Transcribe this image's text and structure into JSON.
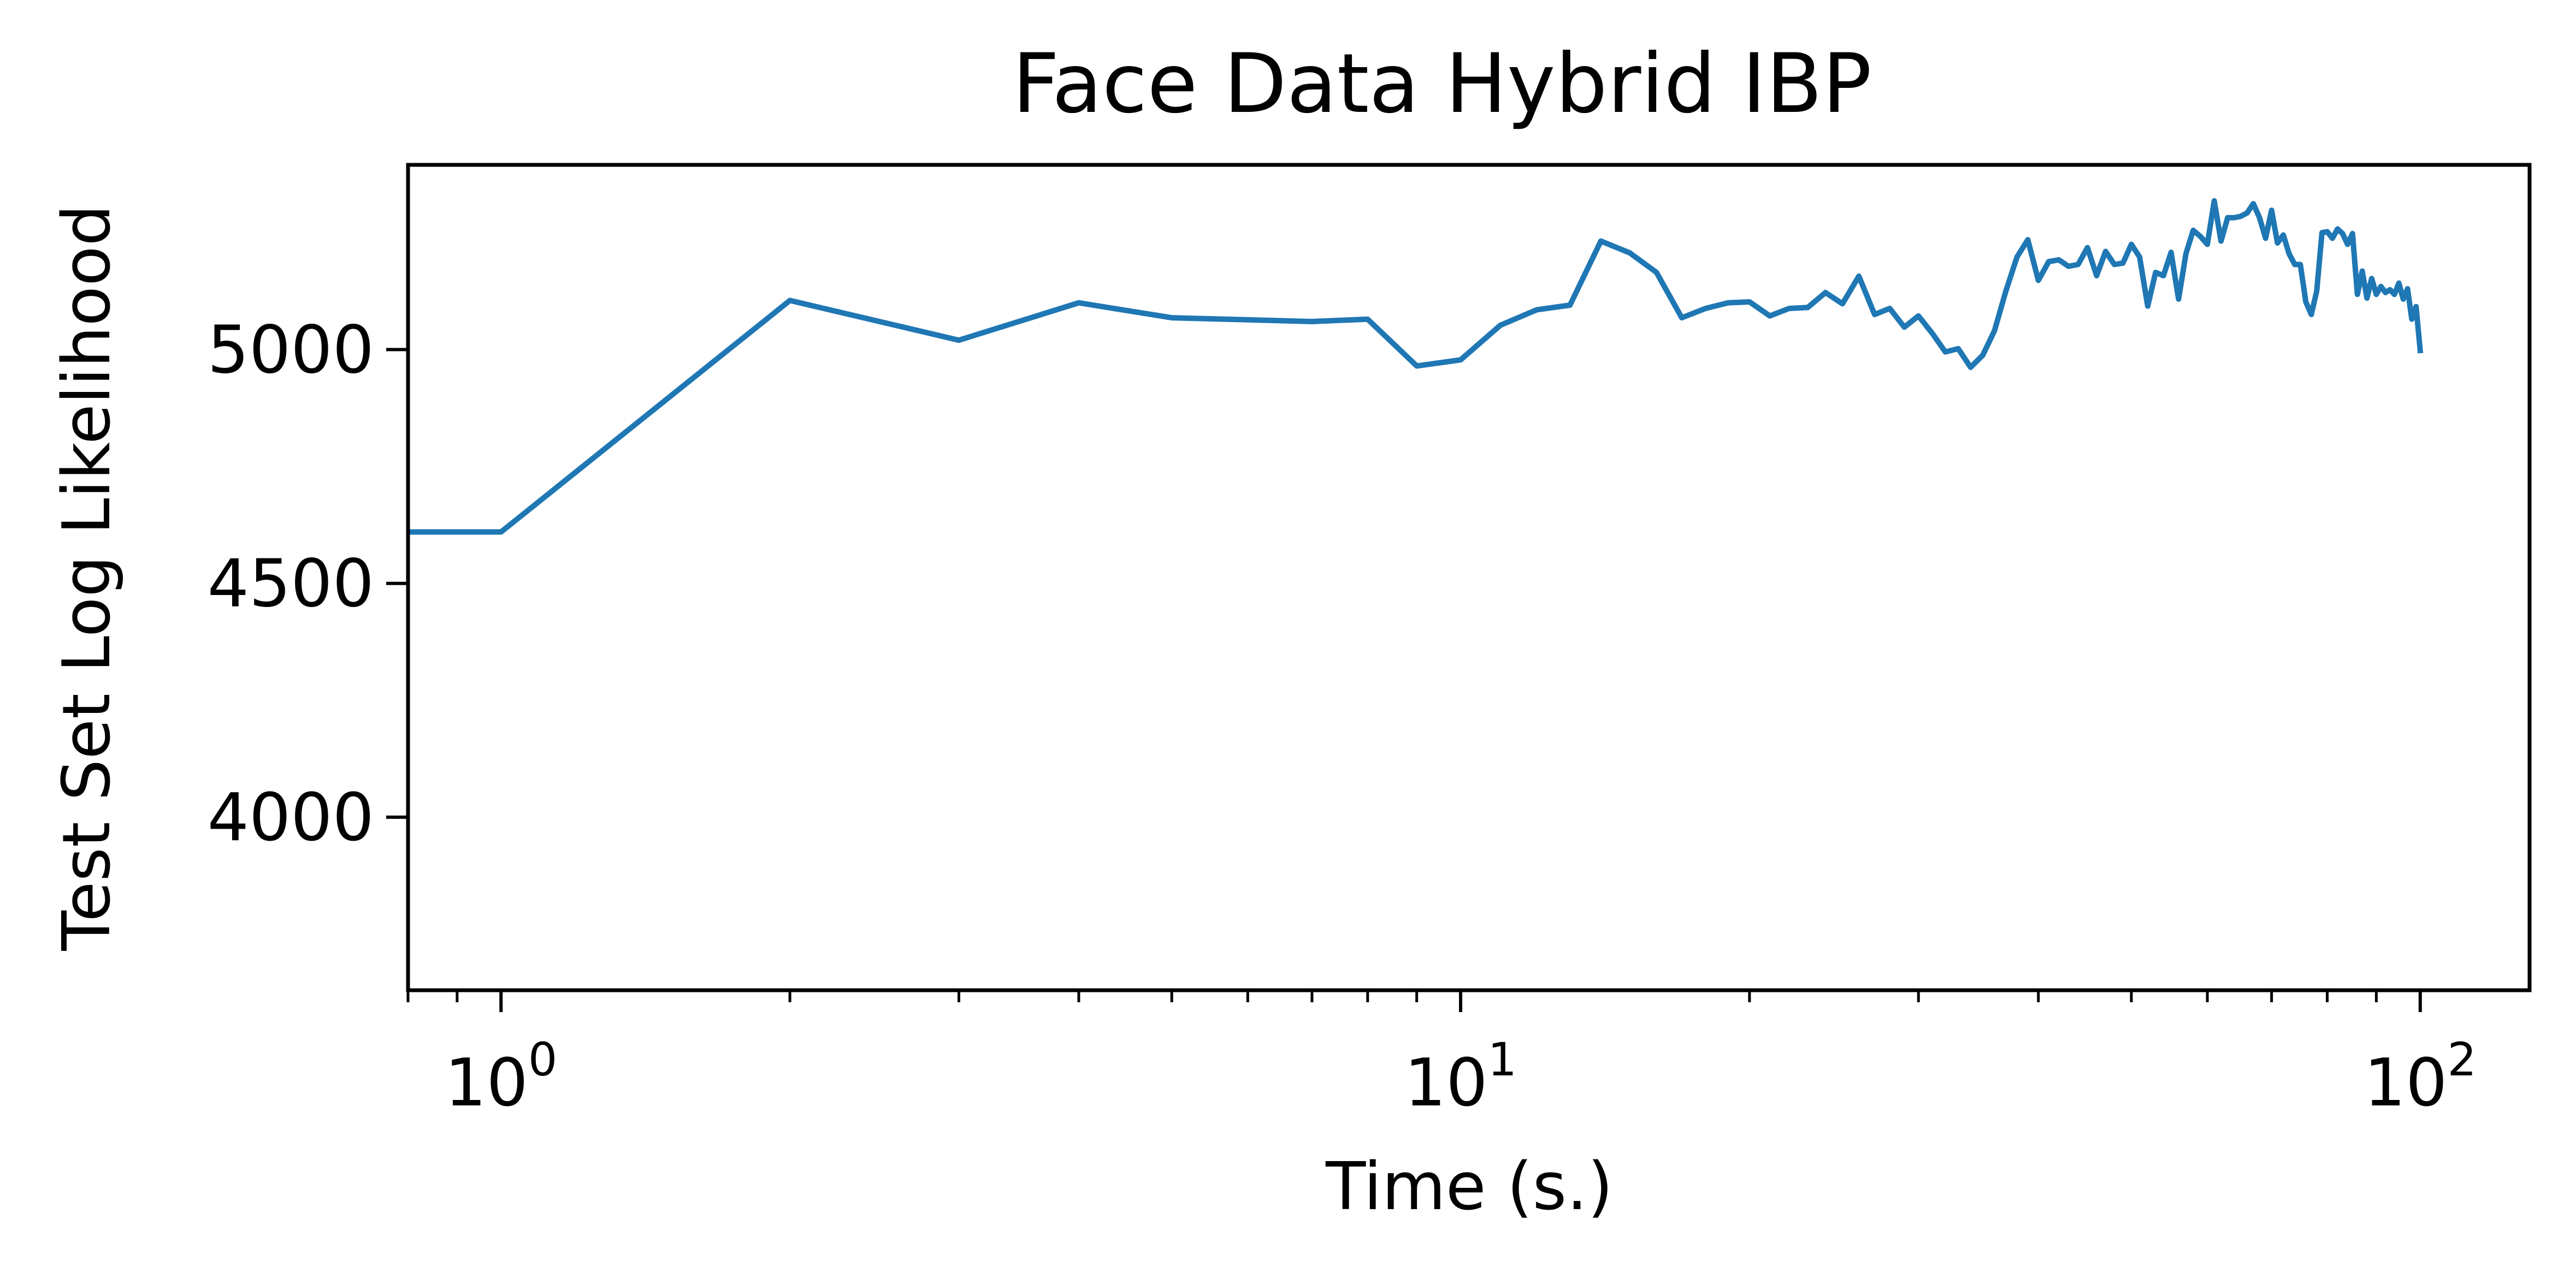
{
  "chart_data": {
    "type": "line",
    "title": "Face Data Hybrid IBP",
    "xlabel": "Time (s.)",
    "ylabel": "Test Set Log Likelihood",
    "x_scale": "log",
    "xlim": [
      0.8,
      130
    ],
    "ylim": [
      3630,
      5395
    ],
    "x_ticks": [
      {
        "value": 1,
        "base": "10",
        "exp": "0"
      },
      {
        "value": 10,
        "base": "10",
        "exp": "1"
      },
      {
        "value": 100,
        "base": "10",
        "exp": "2"
      }
    ],
    "y_ticks": [
      {
        "value": 4000,
        "label": "4000"
      },
      {
        "value": 4500,
        "label": "4500"
      },
      {
        "value": 5000,
        "label": "5000"
      }
    ],
    "grid": false,
    "legend": "none",
    "series": [
      {
        "color": "#1f77b4",
        "x": [
          0.8,
          1.0,
          2.0,
          3.0,
          4.0,
          5.0,
          7.0,
          8.0,
          9.0,
          10.0,
          11.0,
          12.0,
          13.0,
          14.0,
          15.0,
          16.0,
          17.0,
          18.0,
          19.0,
          20.0,
          21.0,
          22.0,
          23.0,
          24.0,
          25.0,
          26.0,
          27.0,
          28.0,
          29.0,
          30.0,
          31.0,
          32.0,
          33.0,
          34.0,
          35.0,
          36.0,
          37.0,
          38.0,
          39.0,
          40.0,
          41.0,
          42.0,
          43.0,
          44.0,
          45.0,
          46.0,
          47.0,
          48.0,
          49.0,
          50.0,
          51.0,
          52.0,
          53.0,
          54.0,
          55.0,
          56.0,
          57.0,
          58.0,
          59.0,
          60.0,
          61.0,
          62.0,
          63.0,
          64.0,
          65.0,
          66.0,
          67.0,
          68.0,
          69.0,
          70.0,
          71.0,
          72.0,
          73.0,
          74.0,
          75.0,
          76.0,
          77.0,
          78.0,
          79.0,
          80.0,
          81.0,
          82.0,
          83.0,
          84.0,
          85.0,
          86.0,
          87.0,
          88.0,
          89.0,
          90.0,
          91.0,
          92.0,
          93.0,
          94.0,
          95.0,
          96.0,
          97.0,
          98.0,
          99.0,
          100.0
        ],
        "y": [
          4610,
          4610,
          5105,
          5020,
          5100,
          5068,
          5060,
          5065,
          4965,
          4978,
          5052,
          5085,
          5095,
          5232,
          5207,
          5165,
          5068,
          5088,
          5100,
          5102,
          5072,
          5088,
          5090,
          5122,
          5098,
          5157,
          5075,
          5088,
          5048,
          5072,
          5035,
          4995,
          5002,
          4962,
          4988,
          5040,
          5125,
          5198,
          5235,
          5148,
          5188,
          5192,
          5178,
          5182,
          5218,
          5158,
          5210,
          5182,
          5185,
          5225,
          5198,
          5093,
          5165,
          5158,
          5208,
          5108,
          5205,
          5255,
          5242,
          5225,
          5318,
          5232,
          5282,
          5282,
          5285,
          5292,
          5312,
          5282,
          5238,
          5298,
          5228,
          5245,
          5205,
          5182,
          5182,
          5102,
          5075,
          5125,
          5250,
          5252,
          5238,
          5258,
          5248,
          5225,
          5248,
          5118,
          5168,
          5110,
          5152,
          5118,
          5135,
          5122,
          5128,
          5118,
          5142,
          5108,
          5130,
          5065,
          5092,
          4998
        ]
      }
    ]
  }
}
